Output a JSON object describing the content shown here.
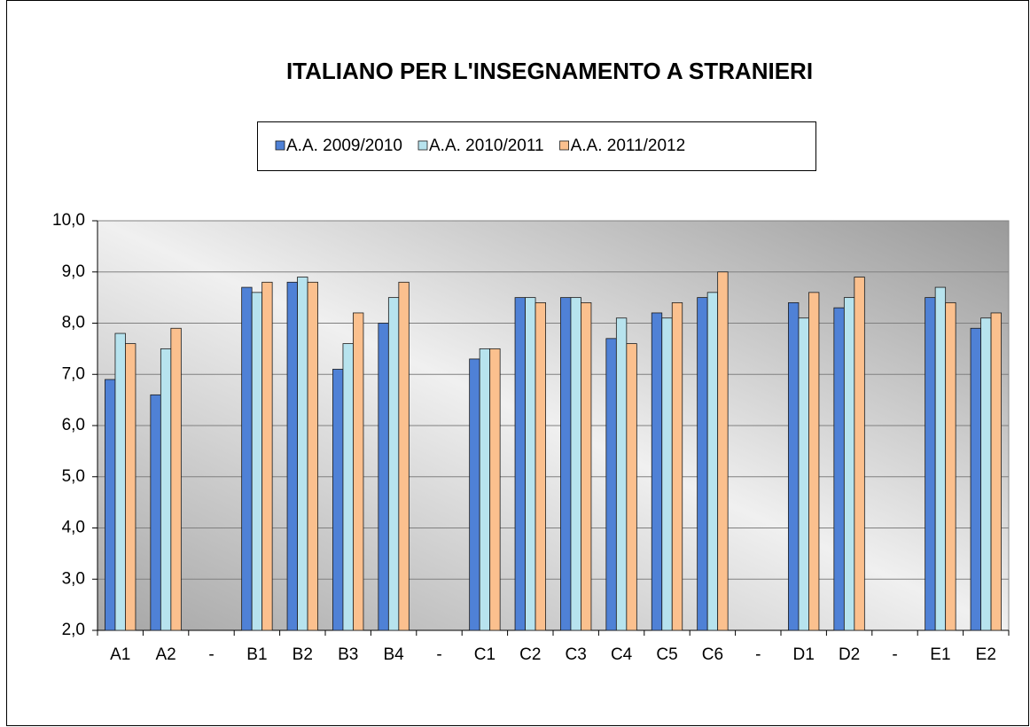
{
  "chart_data": {
    "type": "bar",
    "title": "ITALIANO PER L'INSEGNAMENTO A STRANIERI",
    "categories": [
      "A1",
      "A2",
      "-",
      "B1",
      "B2",
      "B3",
      "B4",
      "-",
      "C1",
      "C2",
      "C3",
      "C4",
      "C5",
      "C6",
      "-",
      "D1",
      "D2",
      "-",
      "E1",
      "E2"
    ],
    "series": [
      {
        "name": "A.A. 2009/2010",
        "color": "#4f81d6",
        "values": [
          6.9,
          6.6,
          null,
          8.7,
          8.8,
          7.1,
          8.0,
          null,
          7.3,
          8.5,
          8.5,
          7.7,
          8.2,
          8.5,
          null,
          8.4,
          8.3,
          null,
          8.5,
          7.9
        ]
      },
      {
        "name": "A.A. 2010/2011",
        "color": "#b7e3ee",
        "values": [
          7.8,
          7.5,
          null,
          8.6,
          8.9,
          7.6,
          8.5,
          null,
          7.5,
          8.5,
          8.5,
          8.1,
          8.1,
          8.6,
          null,
          8.1,
          8.5,
          null,
          8.7,
          8.1
        ]
      },
      {
        "name": "A.A. 2011/2012",
        "color": "#fbc08e",
        "values": [
          7.6,
          7.9,
          null,
          8.8,
          8.8,
          8.2,
          8.8,
          null,
          7.5,
          8.4,
          8.4,
          7.6,
          8.4,
          9.0,
          null,
          8.6,
          8.9,
          null,
          8.4,
          8.2
        ]
      }
    ],
    "ylim": [
      2,
      10
    ],
    "yticks": [
      {
        "value": 2,
        "label": "2,0"
      },
      {
        "value": 3,
        "label": "3,0"
      },
      {
        "value": 4,
        "label": "4,0"
      },
      {
        "value": 5,
        "label": "5,0"
      },
      {
        "value": 6,
        "label": "6,0"
      },
      {
        "value": 7,
        "label": "7,0"
      },
      {
        "value": 8,
        "label": "8,0"
      },
      {
        "value": 9,
        "label": "9,0"
      },
      {
        "value": 10,
        "label": "10,0"
      }
    ],
    "grid": true,
    "legend": "top"
  }
}
